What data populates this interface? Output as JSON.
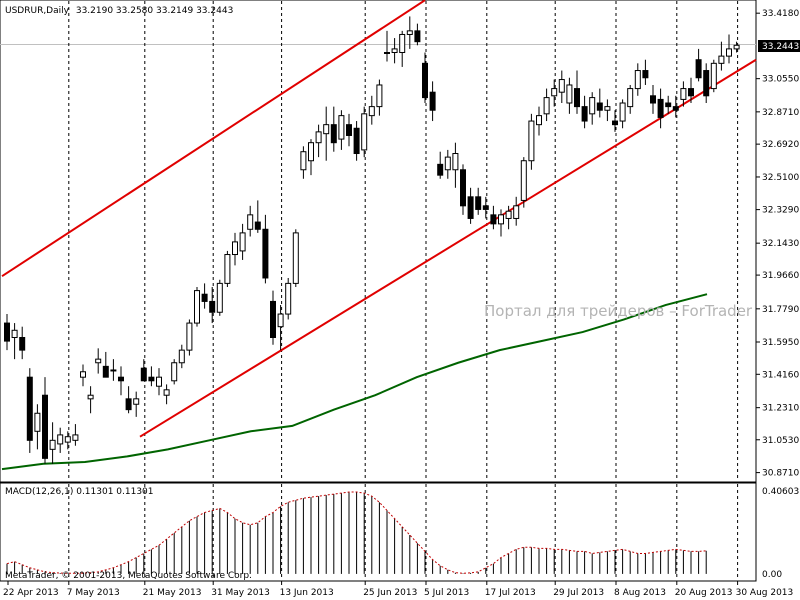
{
  "chart_data": [
    {
      "type": "candlestick",
      "symbol_label": "USDRUR,Daily",
      "ohlc_label": "33.2190 33.2580 33.2149 33.2443",
      "current_price_label": "33.2443",
      "watermark": "Портал для трейдеров – ForTrader",
      "y_ticks": [
        "33.4180",
        "33.2443",
        "33.0550",
        "32.8710",
        "32.6920",
        "32.5100",
        "32.3290",
        "32.1430",
        "31.9660",
        "31.7790",
        "31.5950",
        "31.4160",
        "31.2310",
        "31.0530",
        "30.8710"
      ],
      "x_ticks": [
        "22 Apr 2013",
        "7 May 2013",
        "21 May 2013",
        "31 May 2013",
        "13 Jun 2013",
        "25 Jun 2013",
        "5 Jul 2013",
        "17 Jul 2013",
        "29 Jul 2013",
        "8 Aug 2013",
        "20 Aug 2013",
        "30 Aug 2013"
      ],
      "ylim": [
        30.83,
        33.48
      ],
      "grid": true,
      "colors": {
        "trendlines": "#e00000",
        "moving_average": "#006400",
        "bull_candle": "#ffffff",
        "bear_candle": "#000000"
      },
      "candles": [
        {
          "o": 31.7,
          "h": 31.75,
          "l": 31.55,
          "c": 31.6
        },
        {
          "o": 31.62,
          "h": 31.7,
          "l": 31.5,
          "c": 31.66
        },
        {
          "o": 31.62,
          "h": 31.68,
          "l": 31.5,
          "c": 31.55
        },
        {
          "o": 31.4,
          "h": 31.45,
          "l": 30.98,
          "c": 31.05
        },
        {
          "o": 31.1,
          "h": 31.25,
          "l": 31.0,
          "c": 31.2
        },
        {
          "o": 31.3,
          "h": 31.4,
          "l": 30.92,
          "c": 30.95
        },
        {
          "o": 31.0,
          "h": 31.15,
          "l": 30.92,
          "c": 31.05
        },
        {
          "o": 31.03,
          "h": 31.12,
          "l": 30.98,
          "c": 31.08
        },
        {
          "o": 31.04,
          "h": 31.1,
          "l": 31.0,
          "c": 31.07
        },
        {
          "o": 31.05,
          "h": 31.14,
          "l": 31.02,
          "c": 31.08
        },
        {
          "o": 31.4,
          "h": 31.47,
          "l": 31.35,
          "c": 31.43
        },
        {
          "o": 31.28,
          "h": 31.35,
          "l": 31.2,
          "c": 31.3
        },
        {
          "o": 31.48,
          "h": 31.56,
          "l": 31.42,
          "c": 31.5
        },
        {
          "o": 31.46,
          "h": 31.54,
          "l": 31.4,
          "c": 31.4
        },
        {
          "o": 31.44,
          "h": 31.5,
          "l": 31.38,
          "c": 31.44
        },
        {
          "o": 31.4,
          "h": 31.46,
          "l": 31.3,
          "c": 31.38
        },
        {
          "o": 31.28,
          "h": 31.35,
          "l": 31.2,
          "c": 31.22
        },
        {
          "o": 31.25,
          "h": 31.32,
          "l": 31.18,
          "c": 31.28
        },
        {
          "o": 31.45,
          "h": 31.5,
          "l": 31.38,
          "c": 31.38
        },
        {
          "o": 31.4,
          "h": 31.46,
          "l": 31.35,
          "c": 31.38
        },
        {
          "o": 31.35,
          "h": 31.45,
          "l": 31.3,
          "c": 31.4
        },
        {
          "o": 31.3,
          "h": 31.36,
          "l": 31.25,
          "c": 31.33
        },
        {
          "o": 31.38,
          "h": 31.5,
          "l": 31.36,
          "c": 31.48
        },
        {
          "o": 31.48,
          "h": 31.58,
          "l": 31.45,
          "c": 31.55
        },
        {
          "o": 31.55,
          "h": 31.72,
          "l": 31.52,
          "c": 31.7
        },
        {
          "o": 31.7,
          "h": 31.9,
          "l": 31.68,
          "c": 31.88
        },
        {
          "o": 31.86,
          "h": 31.92,
          "l": 31.78,
          "c": 31.82
        },
        {
          "o": 31.82,
          "h": 31.9,
          "l": 31.7,
          "c": 31.76
        },
        {
          "o": 31.76,
          "h": 31.94,
          "l": 31.74,
          "c": 31.92
        },
        {
          "o": 31.92,
          "h": 32.1,
          "l": 31.9,
          "c": 32.08
        },
        {
          "o": 32.08,
          "h": 32.2,
          "l": 32.02,
          "c": 32.15
        },
        {
          "o": 32.1,
          "h": 32.25,
          "l": 32.05,
          "c": 32.2
        },
        {
          "o": 32.22,
          "h": 32.35,
          "l": 32.18,
          "c": 32.3
        },
        {
          "o": 32.26,
          "h": 32.38,
          "l": 32.2,
          "c": 32.22
        },
        {
          "o": 32.22,
          "h": 32.3,
          "l": 31.92,
          "c": 31.95
        },
        {
          "o": 31.82,
          "h": 31.88,
          "l": 31.58,
          "c": 31.62
        },
        {
          "o": 31.68,
          "h": 31.8,
          "l": 31.55,
          "c": 31.75
        },
        {
          "o": 31.75,
          "h": 31.95,
          "l": 31.72,
          "c": 31.92
        },
        {
          "o": 31.92,
          "h": 32.22,
          "l": 31.9,
          "c": 32.2
        },
        {
          "o": 32.55,
          "h": 32.68,
          "l": 32.5,
          "c": 32.65
        },
        {
          "o": 32.6,
          "h": 32.72,
          "l": 32.52,
          "c": 32.7
        },
        {
          "o": 32.7,
          "h": 32.8,
          "l": 32.62,
          "c": 32.76
        },
        {
          "o": 32.75,
          "h": 32.9,
          "l": 32.6,
          "c": 32.8
        },
        {
          "o": 32.8,
          "h": 32.9,
          "l": 32.65,
          "c": 32.7
        },
        {
          "o": 32.72,
          "h": 32.88,
          "l": 32.66,
          "c": 32.85
        },
        {
          "o": 32.8,
          "h": 32.86,
          "l": 32.68,
          "c": 32.74
        },
        {
          "o": 32.78,
          "h": 32.82,
          "l": 32.6,
          "c": 32.64
        },
        {
          "o": 32.66,
          "h": 32.9,
          "l": 32.62,
          "c": 32.86
        },
        {
          "o": 32.85,
          "h": 32.96,
          "l": 32.8,
          "c": 32.9
        },
        {
          "o": 32.9,
          "h": 33.05,
          "l": 32.85,
          "c": 33.02
        },
        {
          "o": 33.2,
          "h": 33.32,
          "l": 33.15,
          "c": 33.2
        },
        {
          "o": 33.2,
          "h": 33.28,
          "l": 33.14,
          "c": 33.22
        },
        {
          "o": 33.2,
          "h": 33.32,
          "l": 33.12,
          "c": 33.3
        },
        {
          "o": 33.3,
          "h": 33.4,
          "l": 33.22,
          "c": 33.32
        },
        {
          "o": 33.32,
          "h": 33.36,
          "l": 33.24,
          "c": 33.26
        },
        {
          "o": 33.14,
          "h": 33.2,
          "l": 32.92,
          "c": 32.95
        },
        {
          "o": 32.98,
          "h": 33.04,
          "l": 32.82,
          "c": 32.88
        },
        {
          "o": 32.58,
          "h": 32.65,
          "l": 32.5,
          "c": 32.52
        },
        {
          "o": 32.55,
          "h": 32.66,
          "l": 32.5,
          "c": 32.62
        },
        {
          "o": 32.55,
          "h": 32.7,
          "l": 32.45,
          "c": 32.64
        },
        {
          "o": 32.55,
          "h": 32.58,
          "l": 32.3,
          "c": 32.35
        },
        {
          "o": 32.4,
          "h": 32.45,
          "l": 32.25,
          "c": 32.28
        },
        {
          "o": 32.4,
          "h": 32.45,
          "l": 32.3,
          "c": 32.33
        },
        {
          "o": 32.35,
          "h": 32.4,
          "l": 32.28,
          "c": 32.33
        },
        {
          "o": 32.3,
          "h": 32.35,
          "l": 32.22,
          "c": 32.25
        },
        {
          "o": 32.25,
          "h": 32.33,
          "l": 32.18,
          "c": 32.3
        },
        {
          "o": 32.28,
          "h": 32.35,
          "l": 32.22,
          "c": 32.32
        },
        {
          "o": 32.28,
          "h": 32.4,
          "l": 32.24,
          "c": 32.35
        },
        {
          "o": 32.38,
          "h": 32.62,
          "l": 32.34,
          "c": 32.6
        },
        {
          "o": 32.6,
          "h": 32.86,
          "l": 32.55,
          "c": 32.82
        },
        {
          "o": 32.8,
          "h": 32.9,
          "l": 32.74,
          "c": 32.85
        },
        {
          "o": 32.86,
          "h": 33.0,
          "l": 32.82,
          "c": 32.95
        },
        {
          "o": 32.96,
          "h": 33.05,
          "l": 32.9,
          "c": 33.0
        },
        {
          "o": 32.98,
          "h": 33.1,
          "l": 32.92,
          "c": 33.05
        },
        {
          "o": 32.92,
          "h": 33.06,
          "l": 32.86,
          "c": 33.02
        },
        {
          "o": 33.0,
          "h": 33.1,
          "l": 32.86,
          "c": 32.9
        },
        {
          "o": 32.9,
          "h": 32.96,
          "l": 32.78,
          "c": 32.82
        },
        {
          "o": 32.86,
          "h": 32.98,
          "l": 32.8,
          "c": 32.95
        },
        {
          "o": 32.92,
          "h": 33.0,
          "l": 32.84,
          "c": 32.88
        },
        {
          "o": 32.88,
          "h": 32.94,
          "l": 32.82,
          "c": 32.9
        },
        {
          "o": 32.82,
          "h": 32.88,
          "l": 32.76,
          "c": 32.8
        },
        {
          "o": 32.82,
          "h": 32.94,
          "l": 32.78,
          "c": 32.92
        },
        {
          "o": 32.9,
          "h": 33.02,
          "l": 32.86,
          "c": 33.0
        },
        {
          "o": 33.0,
          "h": 33.14,
          "l": 32.96,
          "c": 33.1
        },
        {
          "o": 33.1,
          "h": 33.16,
          "l": 33.02,
          "c": 33.06
        },
        {
          "o": 32.96,
          "h": 33.02,
          "l": 32.86,
          "c": 32.92
        },
        {
          "o": 32.94,
          "h": 33.0,
          "l": 32.78,
          "c": 32.84
        },
        {
          "o": 32.92,
          "h": 32.96,
          "l": 32.86,
          "c": 32.9
        },
        {
          "o": 32.9,
          "h": 32.96,
          "l": 32.84,
          "c": 32.88
        },
        {
          "o": 32.94,
          "h": 33.04,
          "l": 32.9,
          "c": 33.0
        },
        {
          "o": 33.0,
          "h": 33.06,
          "l": 32.92,
          "c": 32.96
        },
        {
          "o": 33.16,
          "h": 33.22,
          "l": 33.04,
          "c": 33.06
        },
        {
          "o": 33.1,
          "h": 33.14,
          "l": 32.92,
          "c": 32.96
        },
        {
          "o": 33.0,
          "h": 33.16,
          "l": 32.98,
          "c": 33.14
        },
        {
          "o": 33.14,
          "h": 33.26,
          "l": 33.1,
          "c": 33.18
        },
        {
          "o": 33.18,
          "h": 33.3,
          "l": 33.14,
          "c": 33.22
        },
        {
          "o": 33.22,
          "h": 33.26,
          "l": 33.2,
          "c": 33.24
        }
      ],
      "moving_average": [
        30.89,
        30.92,
        30.93,
        30.96,
        31.0,
        31.05,
        31.1,
        31.13,
        31.22,
        31.3,
        31.4,
        31.48,
        31.55,
        31.6,
        31.65,
        31.72,
        31.8,
        31.86
      ],
      "macd": {
        "label": "MACD(12,26,1) 0.11301 0.11301",
        "y_ticks": [
          "0.40603",
          "0.00"
        ],
        "ylim": [
          -0.02,
          0.41
        ],
        "values": [
          0.05,
          0.06,
          0.045,
          0.03,
          0.02,
          0.01,
          0.006,
          0.004,
          0.003,
          0.003,
          0.004,
          0.006,
          0.01,
          0.02,
          0.03,
          0.045,
          0.06,
          0.08,
          0.1,
          0.12,
          0.14,
          0.17,
          0.2,
          0.23,
          0.26,
          0.28,
          0.3,
          0.31,
          0.32,
          0.3,
          0.27,
          0.25,
          0.24,
          0.25,
          0.28,
          0.3,
          0.33,
          0.35,
          0.36,
          0.37,
          0.375,
          0.38,
          0.385,
          0.39,
          0.395,
          0.4,
          0.4,
          0.395,
          0.38,
          0.35,
          0.31,
          0.27,
          0.23,
          0.19,
          0.15,
          0.11,
          0.07,
          0.04,
          0.02,
          0.006,
          0.003,
          0.005,
          0.01,
          0.03,
          0.05,
          0.08,
          0.1,
          0.12,
          0.13,
          0.13,
          0.125,
          0.125,
          0.12,
          0.12,
          0.115,
          0.11,
          0.11,
          0.1,
          0.105,
          0.11,
          0.115,
          0.12,
          0.11,
          0.1,
          0.1,
          0.105,
          0.11,
          0.115,
          0.12,
          0.115,
          0.11,
          0.11,
          0.113
        ]
      }
    }
  ],
  "footer": {
    "copyright": "MetaTrader, © 2001-2013, MetaQuotes Software Corp."
  }
}
